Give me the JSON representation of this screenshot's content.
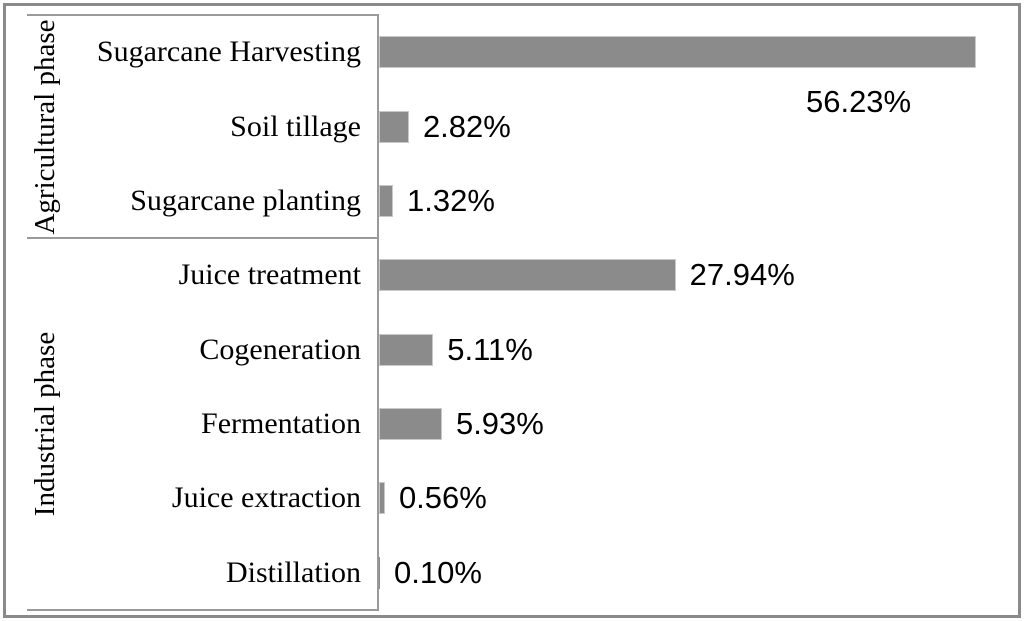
{
  "chart_data": {
    "type": "bar",
    "orientation": "horizontal",
    "title": "",
    "xlabel": "",
    "ylabel": "",
    "xlim": [
      0,
      60
    ],
    "grid": false,
    "legend": false,
    "colors": {
      "bar_fill": "#8b8b8b",
      "bar_border": "#c9c9c9",
      "axis_line": "#9a9a9a",
      "outer_frame": "#8a8a8a",
      "text": "#000000",
      "background": "#ffffff"
    },
    "groups": [
      {
        "label": "Agricultural phase",
        "items": [
          {
            "category": "Sugarcane Harvesting",
            "value": 56.23,
            "display": "56.23%",
            "label_placement": "below-end"
          },
          {
            "category": "Soil tillage",
            "value": 2.82,
            "display": "2.82%",
            "label_placement": "right"
          },
          {
            "category": "Sugarcane planting",
            "value": 1.32,
            "display": "1.32%",
            "label_placement": "right"
          }
        ]
      },
      {
        "label": "Industrial phase",
        "items": [
          {
            "category": "Juice treatment",
            "value": 27.94,
            "display": "27.94%",
            "label_placement": "right"
          },
          {
            "category": "Cogeneration",
            "value": 5.11,
            "display": "5.11%",
            "label_placement": "right"
          },
          {
            "category": "Fermentation",
            "value": 5.93,
            "display": "5.93%",
            "label_placement": "right"
          },
          {
            "category": "Juice extraction",
            "value": 0.56,
            "display": "0.56%",
            "label_placement": "right"
          },
          {
            "category": "Distillation",
            "value": 0.1,
            "display": "0.10%",
            "label_placement": "right"
          }
        ]
      }
    ]
  }
}
